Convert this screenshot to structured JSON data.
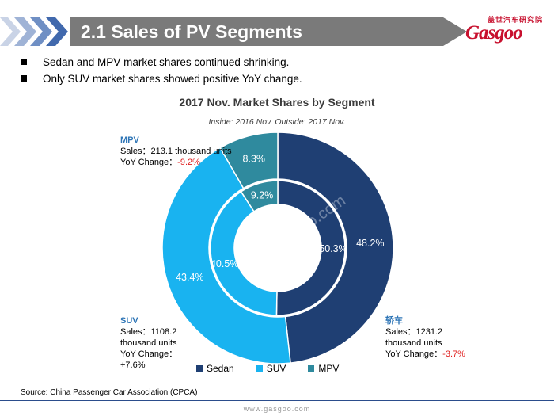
{
  "header": {
    "title": "2.1 Sales of PV Segments",
    "logo_cn": "盖世汽车研究院",
    "logo_word": "Gasgoo"
  },
  "bullets": [
    "Sedan and MPV market shares continued shrinking.",
    "Only SUV market shares showed positive YoY change."
  ],
  "chart_data": {
    "type": "pie",
    "title": "2017 Nov. Market Shares by Segment",
    "subtitle": "Inside: 2016 Nov.  Outside: 2017 Nov.",
    "categories": [
      "Sedan",
      "SUV",
      "MPV"
    ],
    "series": [
      {
        "name": "Inside: 2016 Nov.",
        "values": [
          50.3,
          40.5,
          9.2
        ],
        "labels": [
          "50.3%",
          "40.5%",
          "9.2%"
        ]
      },
      {
        "name": "Outside: 2017 Nov.",
        "values": [
          48.2,
          43.4,
          8.3
        ],
        "labels": [
          "48.2%",
          "43.4%",
          "8.3%"
        ]
      }
    ],
    "colors": [
      "#1f3f73",
      "#19b3f0",
      "#2f8a9e"
    ],
    "legend_position": "bottom"
  },
  "callouts": {
    "mpv": {
      "name": "MPV",
      "sales": "Sales：213.1 thousand units",
      "yoy_label": "YoY Change：",
      "yoy_value": "-9.2%"
    },
    "suv": {
      "name": "SUV",
      "sales1": "Sales：1108.2",
      "sales2": "thousand units",
      "yoy_label": "YoY Change：",
      "yoy_value": "+7.6%"
    },
    "sedan": {
      "name": "轿车",
      "sales1": "Sales：1231.2",
      "sales2": "thousand units",
      "yoy_label": "YoY Change：",
      "yoy_value": "-3.7%"
    }
  },
  "watermark": {
    "text": "auto.gasgoo.com"
  },
  "source": "Source: China Passenger Car Association (CPCA)",
  "footer": {
    "url": "www.gasgoo.com"
  }
}
